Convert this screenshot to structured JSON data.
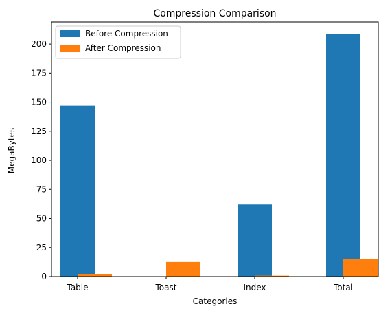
{
  "chart_data": {
    "type": "bar",
    "title": "Compression Comparison",
    "xlabel": "Categories",
    "ylabel": "MegaBytes",
    "categories": [
      "Table",
      "Toast",
      "Index",
      "Total"
    ],
    "series": [
      {
        "name": "Before Compression",
        "values": [
          147,
          0,
          62,
          208.5
        ],
        "color": "#1f77b4"
      },
      {
        "name": "After Compression",
        "values": [
          2,
          12.5,
          0.8,
          15
        ],
        "color": "#ff7f0e"
      }
    ],
    "ylim": [
      0,
      219
    ],
    "yticks": [
      0,
      25,
      50,
      75,
      100,
      125,
      150,
      175,
      200
    ],
    "legend": "top-left",
    "grid": false
  }
}
